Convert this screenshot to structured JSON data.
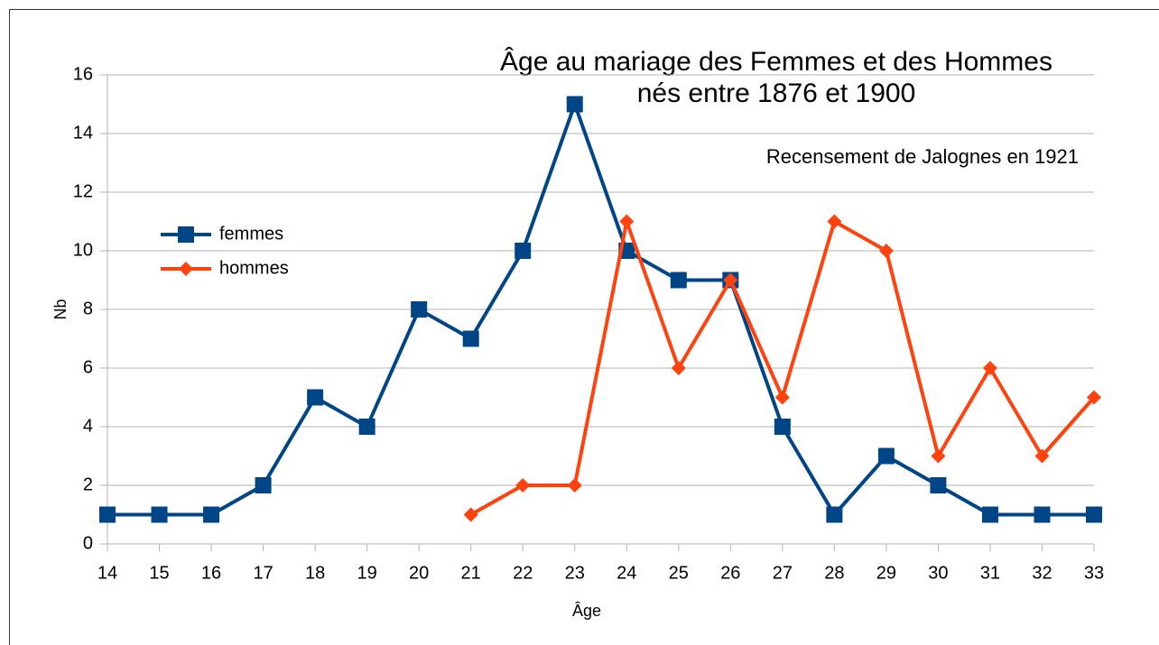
{
  "chart_data": {
    "type": "line",
    "title": [
      "Âge au mariage des Femmes et des Hommes",
      "nés entre 1876 et 1900"
    ],
    "subtitle": "Recensement de Jalognes en 1921",
    "x_label": "Âge",
    "y_label": "Nb",
    "x": [
      14,
      15,
      16,
      17,
      18,
      19,
      20,
      21,
      22,
      23,
      24,
      25,
      26,
      27,
      28,
      29,
      30,
      31,
      32,
      33
    ],
    "series": [
      {
        "name": "femmes",
        "color": "#004586",
        "marker": "square",
        "values": [
          1,
          1,
          1,
          2,
          5,
          4,
          8,
          7,
          10,
          15,
          10,
          9,
          9,
          4,
          1,
          3,
          2,
          1,
          1,
          1
        ]
      },
      {
        "name": "hommes",
        "color": "#ff420e",
        "marker": "diamond",
        "values": [
          null,
          null,
          null,
          null,
          null,
          null,
          null,
          1,
          2,
          2,
          11,
          6,
          9,
          5,
          11,
          10,
          3,
          6,
          3,
          5
        ]
      }
    ],
    "xlim": [
      14,
      33
    ],
    "xticks": [
      14,
      15,
      16,
      17,
      18,
      19,
      20,
      21,
      22,
      23,
      24,
      25,
      26,
      27,
      28,
      29,
      30,
      31,
      32,
      33
    ],
    "ylim": [
      0,
      16
    ],
    "yticks": [
      0,
      2,
      4,
      6,
      8,
      10,
      12,
      14,
      16
    ],
    "grid": true,
    "legend": "left"
  }
}
